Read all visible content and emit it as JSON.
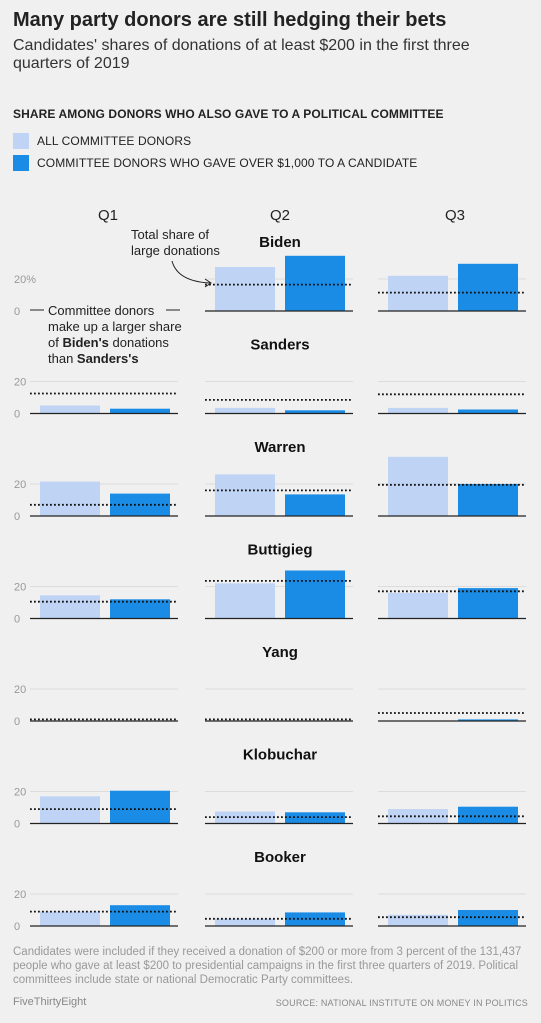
{
  "header": {
    "title": "Many party donors are still hedging their bets",
    "subtitle": "Candidates' shares of donations of at least $200 in the first three quarters of 2019"
  },
  "section_heading": "SHARE AMONG DONORS WHO ALSO GAVE TO A POLITICAL COMMITTEE",
  "legend": [
    {
      "label": "ALL COMMITTEE DONORS",
      "color": "#bfd3f5"
    },
    {
      "label": "COMMITTEE DONORS WHO GAVE OVER $1,000 TO A CANDIDATE",
      "color": "#1a8ce6"
    }
  ],
  "annotations": {
    "total_share_line1": "Total share of",
    "total_share_line2": "large donations",
    "committee_line1": "Committee donors",
    "committee_line2": "make up a larger share",
    "committee_line3_pre": "of ",
    "committee_line3_bold": "Biden's",
    "committee_line3_post": " donations",
    "committee_line4_pre": "than ",
    "committee_line4_bold": "Sanders's"
  },
  "chart_data": {
    "type": "bar",
    "columns": [
      "Q1",
      "Q2",
      "Q3"
    ],
    "series_names": [
      "ALL COMMITTEE DONORS",
      "COMMITTEE DONORS WHO GAVE OVER $1,000 TO A CANDIDATE"
    ],
    "y_ticks": [
      0,
      20
    ],
    "y_first_tick_label": "20%",
    "ylim": [
      0,
      36
    ],
    "candidates": [
      {
        "name": "Biden",
        "quarters": [
          null,
          {
            "all": 27.5,
            "large": 34.5,
            "total": 16.5
          },
          {
            "all": 22,
            "large": 29.5,
            "total": 11.5
          }
        ]
      },
      {
        "name": "Sanders",
        "quarters": [
          {
            "all": 5,
            "large": 3,
            "total": 12.5
          },
          {
            "all": 3.5,
            "large": 2,
            "total": 8.5
          },
          {
            "all": 3.5,
            "large": 2.5,
            "total": 12
          }
        ]
      },
      {
        "name": "Warren",
        "quarters": [
          {
            "all": 21.5,
            "large": 14,
            "total": 7
          },
          {
            "all": 26,
            "large": 13.5,
            "total": 16
          },
          {
            "all": 37,
            "large": 20,
            "total": 19.5
          }
        ]
      },
      {
        "name": "Buttigieg",
        "quarters": [
          {
            "all": 14.5,
            "large": 12,
            "total": 10.5
          },
          {
            "all": 22,
            "large": 30,
            "total": 23.5
          },
          {
            "all": 16,
            "large": 19,
            "total": 17
          }
        ]
      },
      {
        "name": "Yang",
        "quarters": [
          {
            "all": 0,
            "large": 0,
            "total": 1
          },
          {
            "all": 0,
            "large": 0,
            "total": 1
          },
          {
            "all": 0,
            "large": 1,
            "total": 5
          }
        ]
      },
      {
        "name": "Klobuchar",
        "quarters": [
          {
            "all": 17,
            "large": 20.5,
            "total": 9
          },
          {
            "all": 7.5,
            "large": 7,
            "total": 4
          },
          {
            "all": 9,
            "large": 10.5,
            "total": 4.5
          }
        ]
      },
      {
        "name": "Booker",
        "quarters": [
          {
            "all": 9,
            "large": 13,
            "total": 9
          },
          {
            "all": 4.5,
            "large": 8.5,
            "total": 4.5
          },
          {
            "all": 7,
            "large": 10,
            "total": 5.5
          }
        ]
      }
    ]
  },
  "footnote": "Candidates were included if they received a donation of $200 or more from 3 percent of the 131,437 people who gave at least $200 to presidential campaigns in the first three quarters of 2019. Political committees include state or national Democratic Party committees.",
  "credit": "FiveThirtyEight",
  "source": "SOURCE: NATIONAL INSTITUTE ON MONEY IN POLITICS"
}
